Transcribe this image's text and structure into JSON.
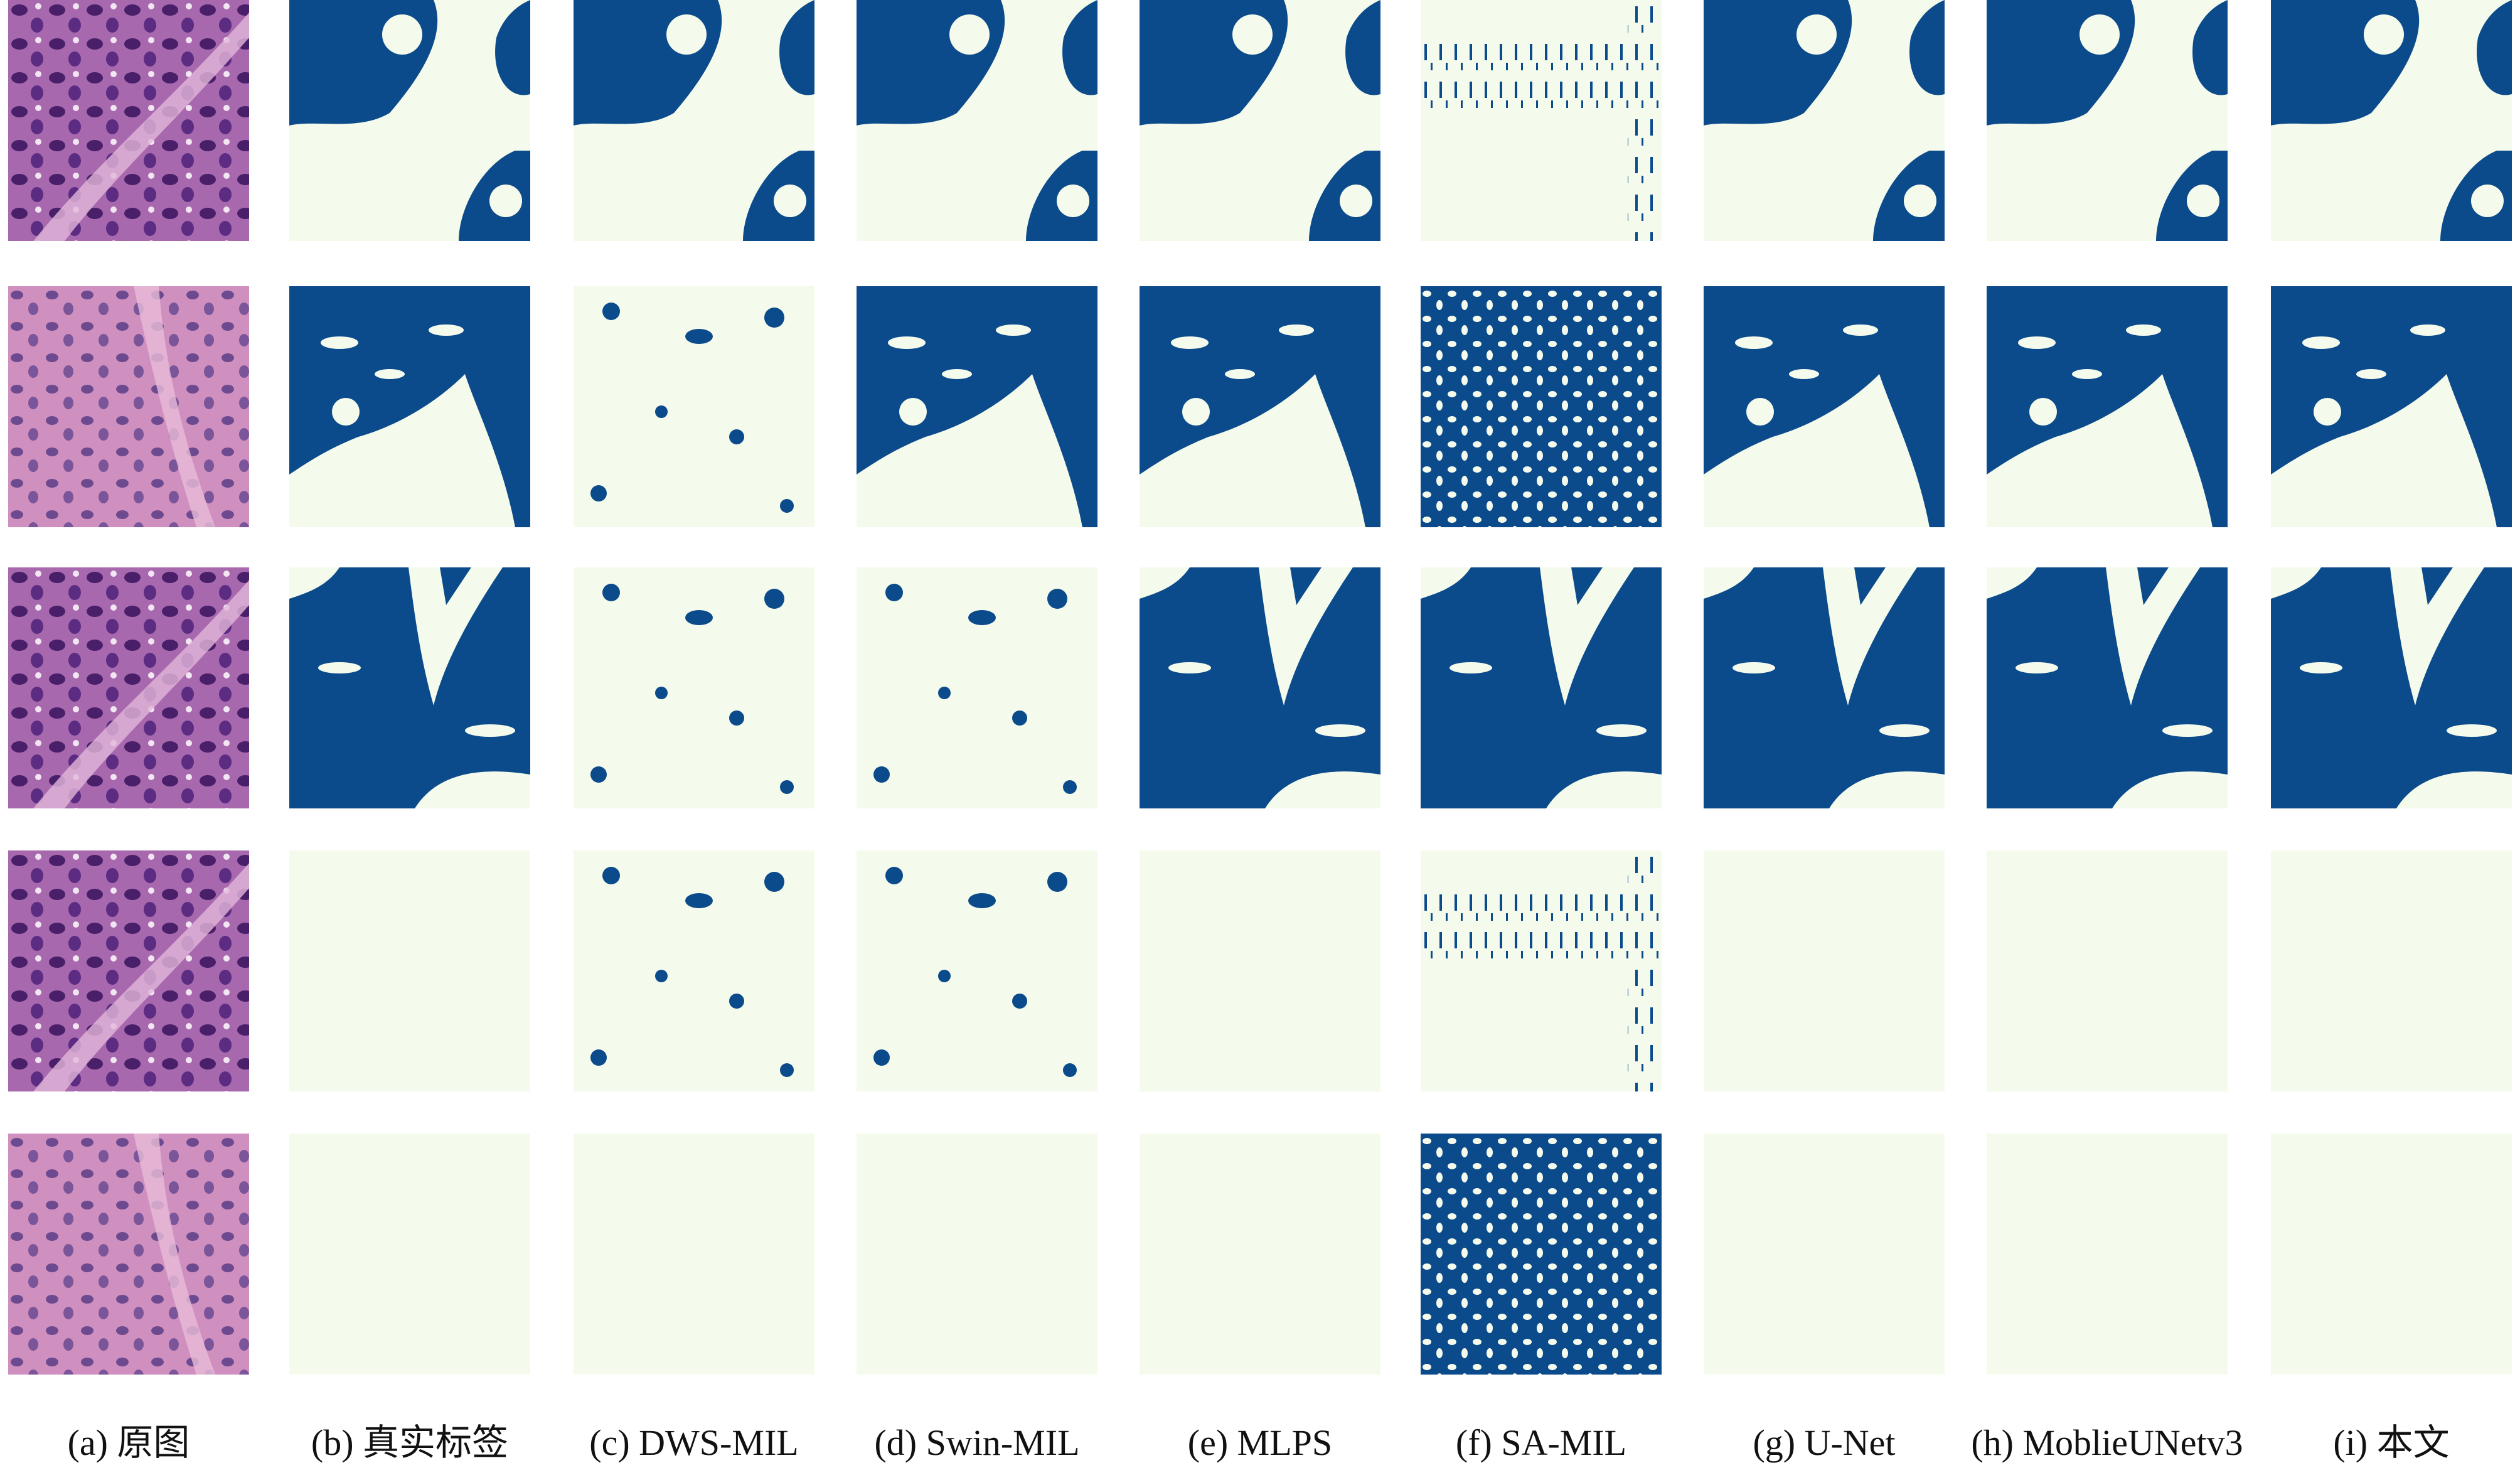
{
  "captions": [
    "(a) 原图",
    "(b) 真实标签",
    "(c) DWS-MIL",
    "(d) Swin-MIL",
    "(e) MLPS",
    "(f) SA-MIL",
    "(g) U-Net",
    "(h) MoblieUNetv3",
    "(i) 本文"
  ]
}
